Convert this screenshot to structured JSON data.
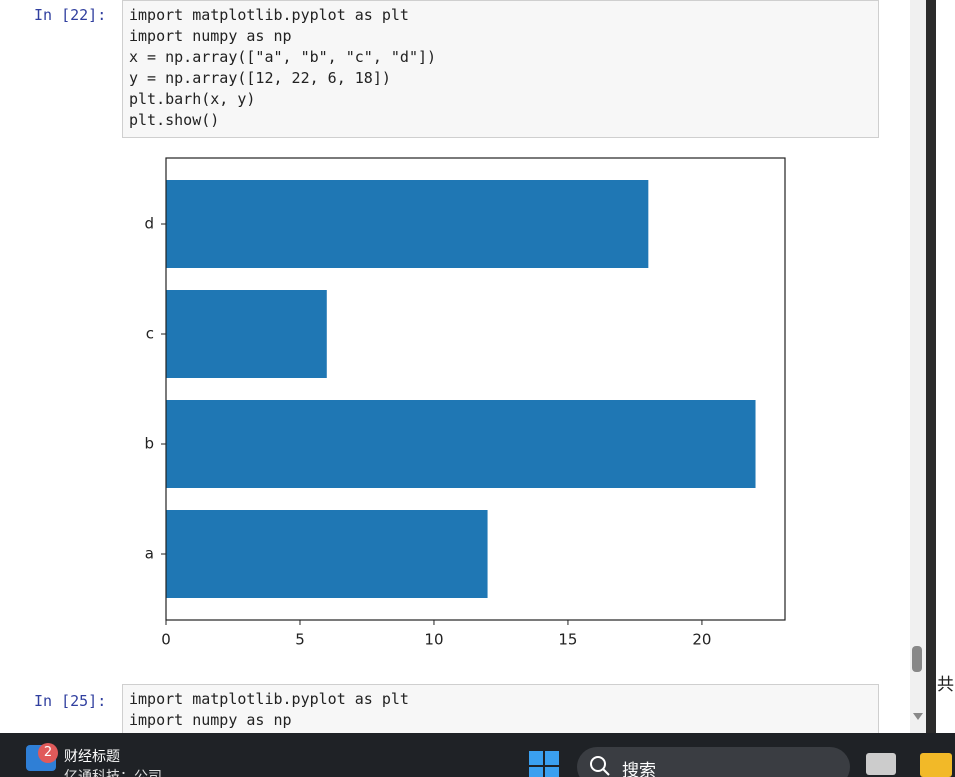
{
  "cells": [
    {
      "prompt": "In  [22]:",
      "code": [
        "import matplotlib.pyplot as plt",
        "import numpy as np",
        "x = np.array([\"a\", \"b\", \"c\", \"d\"])",
        "y = np.array([12, 22, 6, 18])",
        "plt.barh(x, y)",
        "plt.show()"
      ]
    },
    {
      "prompt": "In  [25]:",
      "code": [
        "import matplotlib.pyplot as plt",
        "import numpy as np"
      ]
    }
  ],
  "chart_data": {
    "type": "barh",
    "categories": [
      "a",
      "b",
      "c",
      "d"
    ],
    "values": [
      12,
      22,
      6,
      18
    ],
    "color": "#1f77b4",
    "xlim": [
      0,
      23.1
    ],
    "xticks": [
      0,
      5,
      10,
      15,
      20
    ]
  },
  "side_text": "共",
  "taskbar": {
    "badge": "2",
    "news_title": "财经标题",
    "news_text": "亿通科技：公司",
    "search": "搜索"
  }
}
